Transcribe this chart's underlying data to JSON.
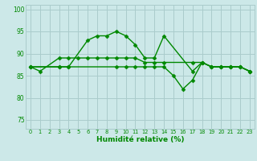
{
  "background_color": "#cce8e8",
  "grid_color": "#aacccc",
  "line_color": "#008800",
  "xlabel": "Humidité relative (%)",
  "ylim": [
    73,
    101
  ],
  "yticks": [
    75,
    80,
    85,
    90,
    95,
    100
  ],
  "xlim": [
    -0.5,
    23.5
  ],
  "curve1_x": [
    0,
    1,
    3,
    4,
    5,
    6,
    7,
    8,
    9,
    10,
    11,
    12,
    13,
    14,
    17,
    18,
    19,
    20,
    21,
    22,
    23
  ],
  "curve1_y": [
    87,
    86,
    89,
    89,
    89,
    89,
    89,
    89,
    89,
    89,
    89,
    88,
    88,
    88,
    88,
    88,
    87,
    87,
    87,
    87,
    86
  ],
  "curve2_x": [
    0,
    3,
    4,
    6,
    7,
    8,
    9,
    10,
    11,
    12,
    13,
    14,
    17,
    18,
    19,
    20,
    21,
    22,
    23
  ],
  "curve2_y": [
    87,
    87,
    87,
    93,
    94,
    94,
    95,
    94,
    92,
    89,
    89,
    94,
    86,
    88,
    87,
    87,
    87,
    87,
    86
  ],
  "curve3_x": [
    0,
    3,
    4,
    9,
    10,
    11,
    12,
    13,
    14,
    15,
    16,
    17,
    18,
    19,
    20,
    21,
    22,
    23
  ],
  "curve3_y": [
    87,
    87,
    87,
    87,
    87,
    87,
    87,
    87,
    87,
    85,
    82,
    84,
    88,
    87,
    87,
    87,
    87,
    86
  ],
  "marker_size": 2.5,
  "line_width": 1.0
}
